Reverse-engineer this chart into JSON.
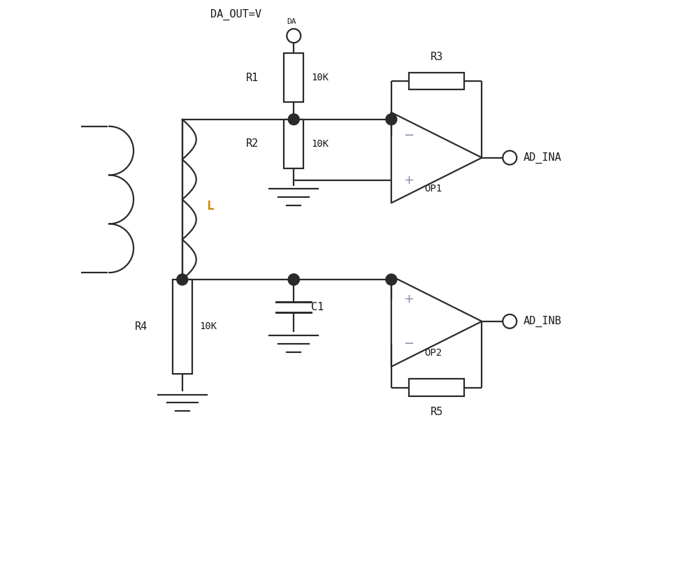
{
  "bg_color": "#ffffff",
  "line_color": "#2a2a2a",
  "line_width": 1.6,
  "text_color": "#1a1a1a",
  "inductor_color": "#cc8800",
  "plus_minus_color": "#8888aa",
  "label_DA_OUT": "DA_OUT=V",
  "label_DA_sub": "DA",
  "label_R1": "R1",
  "label_R1_val": "10K",
  "label_R2": "R2",
  "label_R2_val": "10K",
  "label_R3": "R3",
  "label_R4": "R4",
  "label_R4_val": "10K",
  "label_R5": "R5",
  "label_C1": "C1",
  "label_L": "L",
  "label_OP1": "OP1",
  "label_OP2": "OP2",
  "label_AD_INA": "AD_INA",
  "label_AD_INB": "AD_INB"
}
